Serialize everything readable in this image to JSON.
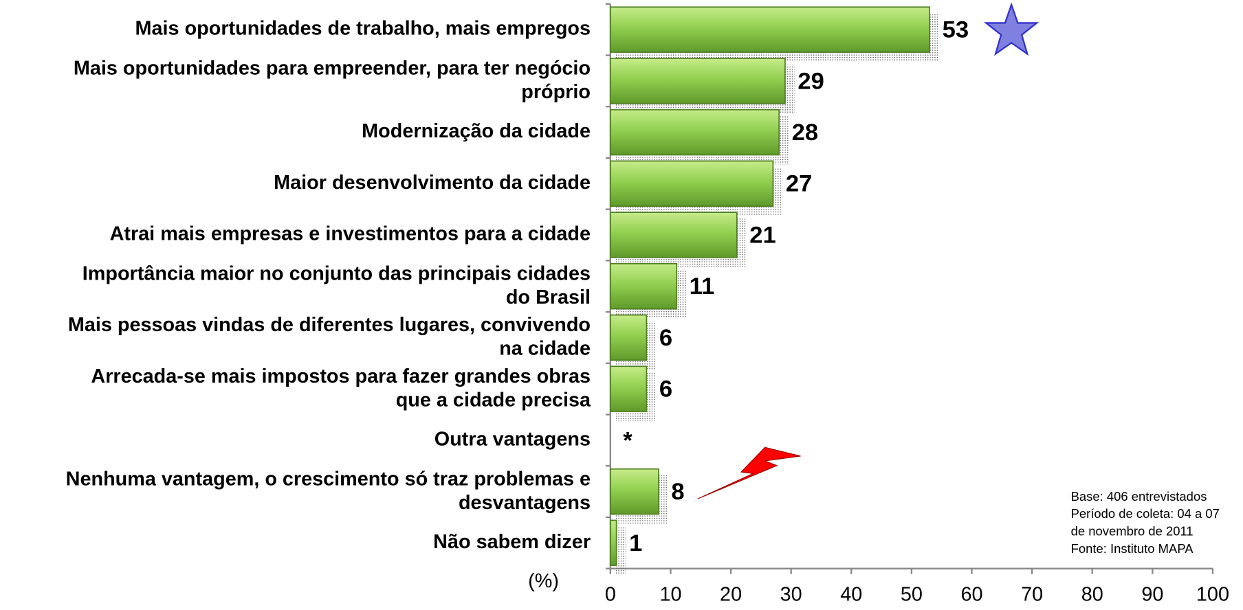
{
  "chart_data": {
    "type": "bar",
    "orientation": "horizontal",
    "categories": [
      "Mais oportunidades de trabalho, mais empregos",
      "Mais oportunidades para empreender, para ter negócio\npróprio",
      "Modernização da cidade",
      "Maior desenvolvimento da cidade",
      "Atrai mais empresas e investimentos para a cidade",
      "Importância maior no conjunto das principais cidades\ndo Brasil",
      "Mais pessoas vindas de diferentes lugares, convivendo\nna cidade",
      "Arrecada-se mais impostos para fazer grandes obras\nque a cidade precisa",
      "Outra vantagens",
      "Nenhuma vantagem, o crescimento só traz problemas e\ndesvantagens",
      "Não sabem dizer"
    ],
    "values": [
      53,
      29,
      28,
      27,
      21,
      11,
      6,
      6,
      null,
      8,
      1
    ],
    "value_labels": [
      "53",
      "29",
      "28",
      "27",
      "21",
      "11",
      "6",
      "6",
      "*",
      "8",
      "1"
    ],
    "color": "#92d050",
    "xlim": [
      0,
      100
    ],
    "xticks": [
      0,
      10,
      20,
      30,
      40,
      50,
      60,
      70,
      80,
      90,
      100
    ],
    "xlabel": "(%)",
    "notes": [
      "Base: 406 entrevistados",
      "Período de coleta: 04 a 07",
      "de novembro de 2011",
      "Fonte: Instituto MAPA"
    ]
  }
}
